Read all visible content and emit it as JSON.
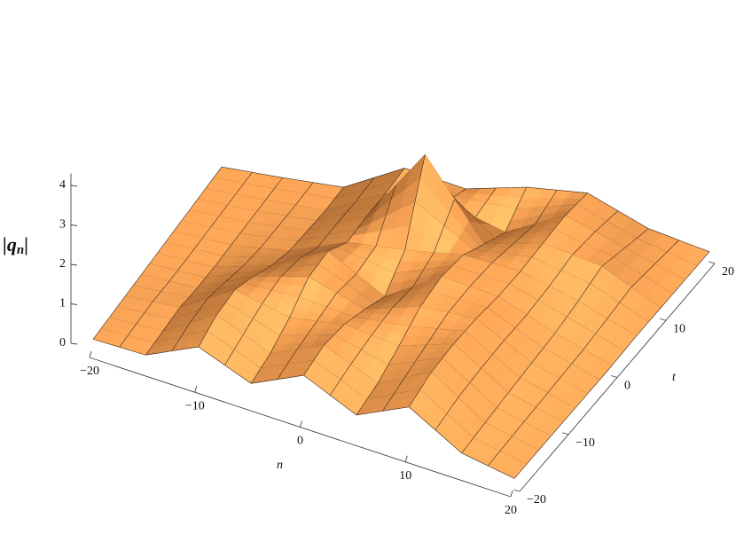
{
  "chart_data": {
    "type": "surface",
    "xlabel": "n",
    "ylabel": "t",
    "zlabel": [
      "|q",
      "n",
      "|"
    ],
    "x": [
      -20,
      -15,
      -10,
      -5,
      0,
      5,
      10,
      15,
      20
    ],
    "y": [
      -20,
      -15,
      -10,
      -5,
      0,
      5,
      10,
      15,
      20
    ],
    "z": [
      [
        0.35,
        0.4,
        1.2,
        0.6,
        1.4,
        0.7,
        1.5,
        0.6,
        0.35
      ],
      [
        0.35,
        0.45,
        1.5,
        0.8,
        1.6,
        0.9,
        1.8,
        0.7,
        0.35
      ],
      [
        0.35,
        0.5,
        1.6,
        1.2,
        1.5,
        1.3,
        1.9,
        0.8,
        0.35
      ],
      [
        0.35,
        0.4,
        1.3,
        1.8,
        1.2,
        1.8,
        1.9,
        0.9,
        0.35
      ],
      [
        0.35,
        0.35,
        0.9,
        1.9,
        0.8,
        2.0,
        1.8,
        1.0,
        0.35
      ],
      [
        0.35,
        0.35,
        0.6,
        1.4,
        1.6,
        1.9,
        1.8,
        1.2,
        0.4
      ],
      [
        0.35,
        0.35,
        0.5,
        1.5,
        4.3,
        1.4,
        1.9,
        1.5,
        0.4
      ],
      [
        0.35,
        0.35,
        0.4,
        1.5,
        1.6,
        0.9,
        2.0,
        1.2,
        0.4
      ],
      [
        0.35,
        0.35,
        0.4,
        1.6,
        1.2,
        1.7,
        1.9,
        0.9,
        0.4
      ]
    ],
    "xlim": [
      -20,
      20
    ],
    "ylim": [
      -20,
      20
    ],
    "zlim": [
      0,
      4.3
    ],
    "xticks": [
      {
        "value": -20,
        "label": "−20"
      },
      {
        "value": -10,
        "label": "−10"
      },
      0,
      10,
      20
    ],
    "yticks": [
      {
        "value": -20,
        "label": "−20"
      },
      {
        "value": -10,
        "label": "−10"
      },
      0,
      10,
      20
    ],
    "zticks": [
      0,
      1,
      2,
      3,
      4
    ],
    "color": "#f08a3a"
  }
}
